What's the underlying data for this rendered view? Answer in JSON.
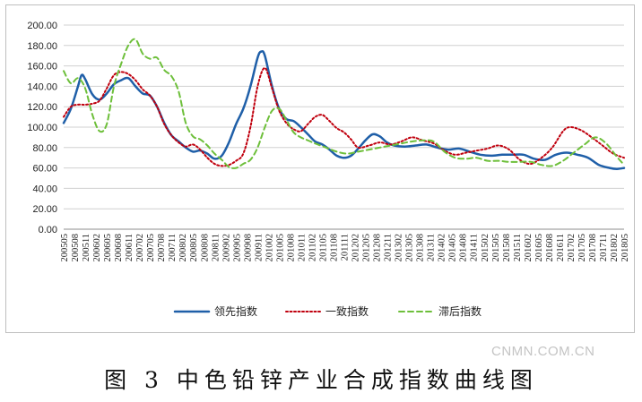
{
  "caption": "图 3   中色铅锌产业合成指数曲线图",
  "watermark": "CNMN.COM.CN",
  "chart_data": {
    "type": "line",
    "title": "",
    "xlabel": "",
    "ylabel": "",
    "ylim": [
      0,
      200
    ],
    "yticks": [
      "0.00",
      "20.00",
      "40.00",
      "60.00",
      "80.00",
      "100.00",
      "120.00",
      "140.00",
      "160.00",
      "180.00",
      "200.00"
    ],
    "grid": "horizontal",
    "legend_position": "bottom",
    "x_start": "2005-05",
    "x_end": "2018-05",
    "x_tick_labels": [
      "200505",
      "200508",
      "200511",
      "200602",
      "200605",
      "200608",
      "200611",
      "200702",
      "200705",
      "200708",
      "200711",
      "200802",
      "200805",
      "200808",
      "200811",
      "200902",
      "200905",
      "200908",
      "200911",
      "201002",
      "201005",
      "201008",
      "201011",
      "201102",
      "201105",
      "201108",
      "201111",
      "201202",
      "201205",
      "201208",
      "201211",
      "201302",
      "201305",
      "201308",
      "201311",
      "201402",
      "201405",
      "201408",
      "201411",
      "201502",
      "201505",
      "201508",
      "201511",
      "201602",
      "201605",
      "201608",
      "201611",
      "201702",
      "201705",
      "201708",
      "201711",
      "201802",
      "201805"
    ],
    "series": [
      {
        "name": "领先指数",
        "color": "#1f5fa8",
        "dash": "solid",
        "points": [
          [
            "2005-05",
            104
          ],
          [
            "2005-07",
            118
          ],
          [
            "2005-09",
            140
          ],
          [
            "2005-10",
            151
          ],
          [
            "2005-11",
            147
          ],
          [
            "2006-01",
            132
          ],
          [
            "2006-03",
            127
          ],
          [
            "2006-05",
            133
          ],
          [
            "2006-07",
            142
          ],
          [
            "2006-09",
            146
          ],
          [
            "2006-11",
            148
          ],
          [
            "2007-01",
            140
          ],
          [
            "2007-03",
            133
          ],
          [
            "2007-05",
            131
          ],
          [
            "2007-07",
            120
          ],
          [
            "2007-09",
            104
          ],
          [
            "2007-11",
            92
          ],
          [
            "2008-01",
            86
          ],
          [
            "2008-03",
            80
          ],
          [
            "2008-05",
            76
          ],
          [
            "2008-07",
            77
          ],
          [
            "2008-09",
            74
          ],
          [
            "2008-11",
            69
          ],
          [
            "2009-01",
            72
          ],
          [
            "2009-03",
            85
          ],
          [
            "2009-05",
            103
          ],
          [
            "2009-07",
            118
          ],
          [
            "2009-09",
            140
          ],
          [
            "2009-11",
            168
          ],
          [
            "2009-12",
            174
          ],
          [
            "2010-01",
            170
          ],
          [
            "2010-03",
            140
          ],
          [
            "2010-05",
            118
          ],
          [
            "2010-07",
            108
          ],
          [
            "2010-09",
            106
          ],
          [
            "2010-11",
            100
          ],
          [
            "2011-01",
            93
          ],
          [
            "2011-03",
            86
          ],
          [
            "2011-05",
            83
          ],
          [
            "2011-07",
            78
          ],
          [
            "2011-09",
            72
          ],
          [
            "2011-11",
            70
          ],
          [
            "2012-01",
            72
          ],
          [
            "2012-03",
            79
          ],
          [
            "2012-05",
            87
          ],
          [
            "2012-07",
            93
          ],
          [
            "2012-09",
            91
          ],
          [
            "2012-11",
            85
          ],
          [
            "2013-01",
            82
          ],
          [
            "2013-04",
            81
          ],
          [
            "2013-07",
            82
          ],
          [
            "2013-10",
            83
          ],
          [
            "2014-01",
            80
          ],
          [
            "2014-04",
            78
          ],
          [
            "2014-07",
            79
          ],
          [
            "2014-10",
            76
          ],
          [
            "2015-01",
            73
          ],
          [
            "2015-04",
            72
          ],
          [
            "2015-07",
            73
          ],
          [
            "2015-10",
            73
          ],
          [
            "2016-01",
            73
          ],
          [
            "2016-04",
            69
          ],
          [
            "2016-07",
            68
          ],
          [
            "2016-10",
            73
          ],
          [
            "2017-01",
            75
          ],
          [
            "2017-04",
            73
          ],
          [
            "2017-07",
            70
          ],
          [
            "2017-10",
            63
          ],
          [
            "2018-01",
            60
          ],
          [
            "2018-03",
            59
          ],
          [
            "2018-05",
            60
          ]
        ]
      },
      {
        "name": "一致指数",
        "color": "#c0000e",
        "dash": "dotted",
        "points": [
          [
            "2005-05",
            110
          ],
          [
            "2005-07",
            120
          ],
          [
            "2005-09",
            122
          ],
          [
            "2005-11",
            122
          ],
          [
            "2006-01",
            123
          ],
          [
            "2006-03",
            126
          ],
          [
            "2006-05",
            138
          ],
          [
            "2006-07",
            151
          ],
          [
            "2006-09",
            154
          ],
          [
            "2006-11",
            152
          ],
          [
            "2007-01",
            146
          ],
          [
            "2007-03",
            137
          ],
          [
            "2007-05",
            131
          ],
          [
            "2007-07",
            120
          ],
          [
            "2007-09",
            103
          ],
          [
            "2007-11",
            92
          ],
          [
            "2008-01",
            85
          ],
          [
            "2008-03",
            81
          ],
          [
            "2008-05",
            83
          ],
          [
            "2008-07",
            78
          ],
          [
            "2008-09",
            70
          ],
          [
            "2008-11",
            64
          ],
          [
            "2009-01",
            62
          ],
          [
            "2009-03",
            63
          ],
          [
            "2009-05",
            67
          ],
          [
            "2009-07",
            74
          ],
          [
            "2009-09",
            100
          ],
          [
            "2009-11",
            140
          ],
          [
            "2010-01",
            158
          ],
          [
            "2010-03",
            138
          ],
          [
            "2010-05",
            116
          ],
          [
            "2010-07",
            104
          ],
          [
            "2010-09",
            98
          ],
          [
            "2010-11",
            96
          ],
          [
            "2011-01",
            103
          ],
          [
            "2011-03",
            110
          ],
          [
            "2011-05",
            112
          ],
          [
            "2011-07",
            106
          ],
          [
            "2011-09",
            99
          ],
          [
            "2011-11",
            95
          ],
          [
            "2012-01",
            88
          ],
          [
            "2012-03",
            80
          ],
          [
            "2012-06",
            82
          ],
          [
            "2012-09",
            85
          ],
          [
            "2012-12",
            83
          ],
          [
            "2013-03",
            86
          ],
          [
            "2013-06",
            90
          ],
          [
            "2013-09",
            87
          ],
          [
            "2013-12",
            84
          ],
          [
            "2014-03",
            77
          ],
          [
            "2014-06",
            73
          ],
          [
            "2014-09",
            75
          ],
          [
            "2014-12",
            77
          ],
          [
            "2015-03",
            79
          ],
          [
            "2015-06",
            82
          ],
          [
            "2015-09",
            78
          ],
          [
            "2015-12",
            68
          ],
          [
            "2016-03",
            64
          ],
          [
            "2016-06",
            70
          ],
          [
            "2016-09",
            80
          ],
          [
            "2016-12",
            96
          ],
          [
            "2017-02",
            100
          ],
          [
            "2017-05",
            97
          ],
          [
            "2017-08",
            90
          ],
          [
            "2017-11",
            82
          ],
          [
            "2018-02",
            74
          ],
          [
            "2018-05",
            70
          ]
        ]
      },
      {
        "name": "滞后指数",
        "color": "#6dbf3a",
        "dash": "dashed",
        "points": [
          [
            "2005-05",
            155
          ],
          [
            "2005-07",
            143
          ],
          [
            "2005-09",
            148
          ],
          [
            "2005-11",
            138
          ],
          [
            "2006-01",
            112
          ],
          [
            "2006-03",
            96
          ],
          [
            "2006-05",
            103
          ],
          [
            "2006-07",
            140
          ],
          [
            "2006-09",
            162
          ],
          [
            "2006-11",
            180
          ],
          [
            "2007-01",
            186
          ],
          [
            "2007-03",
            172
          ],
          [
            "2007-05",
            167
          ],
          [
            "2007-07",
            168
          ],
          [
            "2007-09",
            156
          ],
          [
            "2007-11",
            150
          ],
          [
            "2008-01",
            135
          ],
          [
            "2008-03",
            104
          ],
          [
            "2008-05",
            91
          ],
          [
            "2008-07",
            88
          ],
          [
            "2008-09",
            82
          ],
          [
            "2008-11",
            74
          ],
          [
            "2009-01",
            68
          ],
          [
            "2009-03",
            61
          ],
          [
            "2009-05",
            60
          ],
          [
            "2009-07",
            64
          ],
          [
            "2009-09",
            68
          ],
          [
            "2009-11",
            80
          ],
          [
            "2010-01",
            100
          ],
          [
            "2010-03",
            116
          ],
          [
            "2010-05",
            118
          ],
          [
            "2010-07",
            107
          ],
          [
            "2010-09",
            95
          ],
          [
            "2010-11",
            90
          ],
          [
            "2011-01",
            87
          ],
          [
            "2011-03",
            84
          ],
          [
            "2011-06",
            80
          ],
          [
            "2011-09",
            76
          ],
          [
            "2011-12",
            74
          ],
          [
            "2012-03",
            76
          ],
          [
            "2012-06",
            78
          ],
          [
            "2012-09",
            80
          ],
          [
            "2012-12",
            82
          ],
          [
            "2013-03",
            84
          ],
          [
            "2013-06",
            86
          ],
          [
            "2013-09",
            87
          ],
          [
            "2013-12",
            86
          ],
          [
            "2014-03",
            76
          ],
          [
            "2014-06",
            70
          ],
          [
            "2014-09",
            69
          ],
          [
            "2014-12",
            70
          ],
          [
            "2015-03",
            67
          ],
          [
            "2015-06",
            67
          ],
          [
            "2015-09",
            66
          ],
          [
            "2015-12",
            66
          ],
          [
            "2016-03",
            66
          ],
          [
            "2016-06",
            63
          ],
          [
            "2016-09",
            62
          ],
          [
            "2016-12",
            67
          ],
          [
            "2017-03",
            75
          ],
          [
            "2017-06",
            83
          ],
          [
            "2017-09",
            90
          ],
          [
            "2017-12",
            84
          ],
          [
            "2018-03",
            71
          ],
          [
            "2018-05",
            63
          ]
        ]
      }
    ]
  }
}
